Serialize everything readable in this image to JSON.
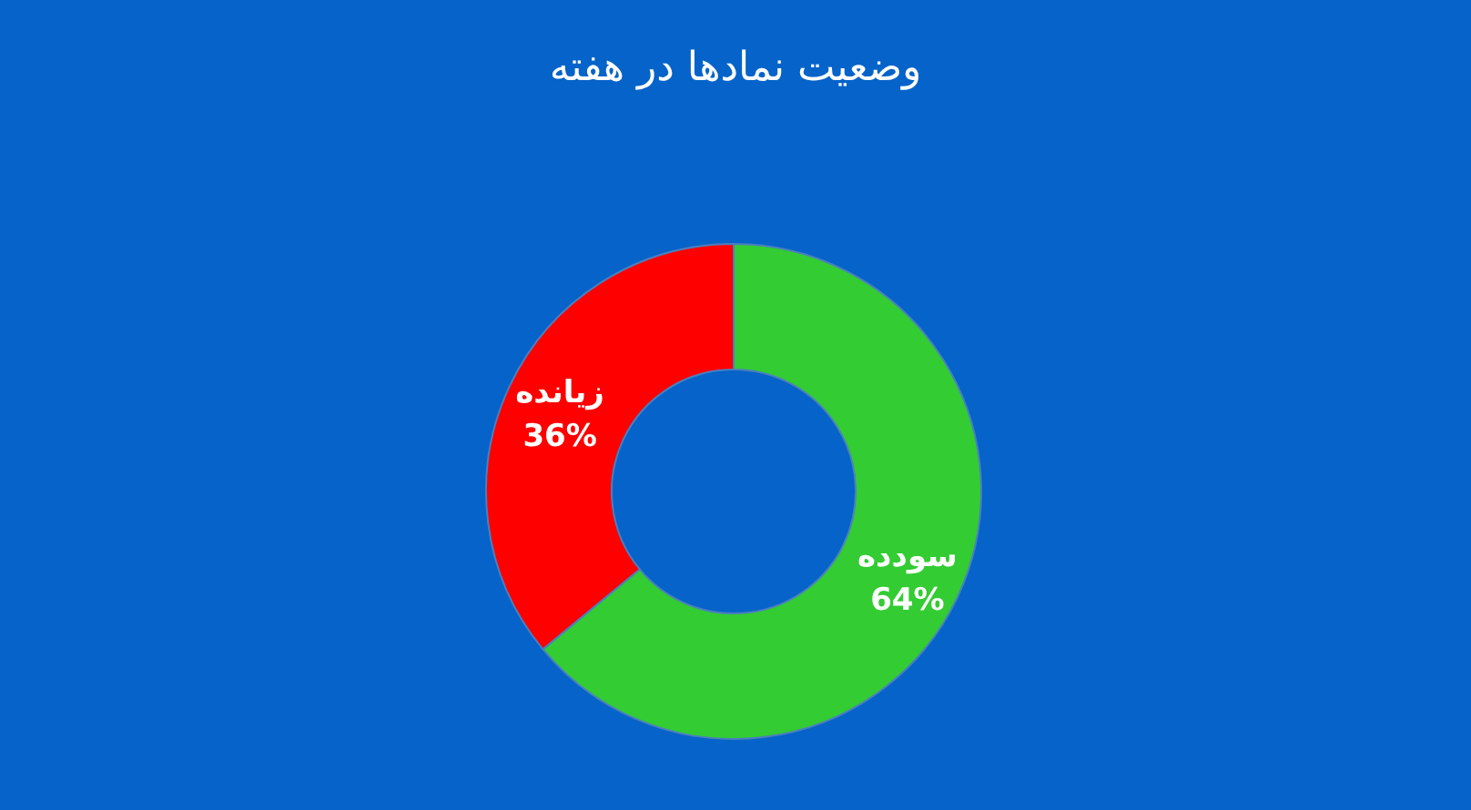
{
  "chart_data": {
    "type": "donut",
    "title": "وضعیت نمادها در هفته",
    "categories": [
      "سودده",
      "زیانده"
    ],
    "values": [
      64,
      36
    ],
    "colors": [
      "#33cc33",
      "#ff0000"
    ],
    "value_labels": [
      "64%",
      "36%"
    ]
  }
}
